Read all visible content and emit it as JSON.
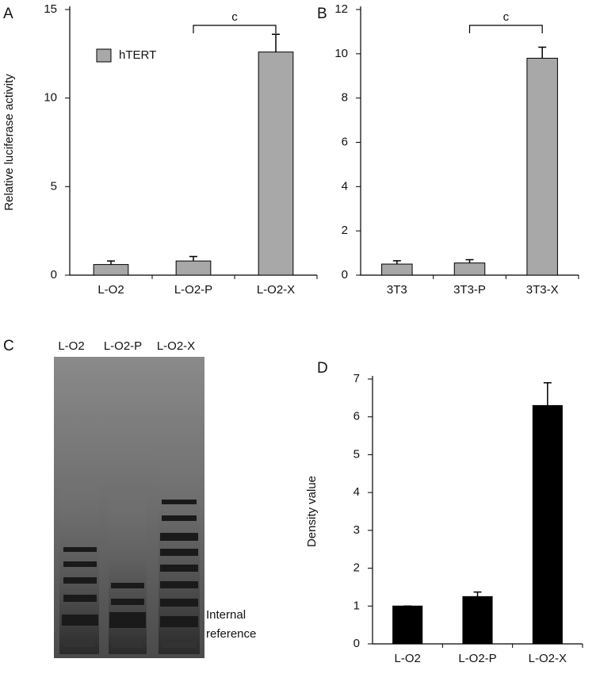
{
  "chart_data": [
    {
      "type": "bar",
      "panel_label": "A",
      "ylabel": "Relative luciferase activity",
      "categories": [
        "L-O2",
        "L-O2-P",
        "L-O2-X"
      ],
      "series": [
        {
          "name": "hTERT",
          "color": "#a8a8a8",
          "values": [
            0.6,
            0.8,
            12.6
          ],
          "errors": [
            0.2,
            0.25,
            1.0
          ]
        }
      ],
      "ylim": [
        0,
        15
      ],
      "yticks": [
        0,
        5,
        10,
        15
      ],
      "annotation": "c",
      "annotation_between": [
        1,
        2
      ]
    },
    {
      "type": "bar",
      "panel_label": "B",
      "categories": [
        "3T3",
        "3T3-P",
        "3T3-X"
      ],
      "series": [
        {
          "color": "#a8a8a8",
          "values": [
            0.5,
            0.55,
            9.8
          ],
          "errors": [
            0.15,
            0.15,
            0.5
          ]
        }
      ],
      "ylim": [
        0,
        12
      ],
      "yticks": [
        0,
        2,
        4,
        6,
        8,
        10,
        12
      ],
      "annotation": "c",
      "annotation_between": [
        1,
        2
      ]
    },
    {
      "type": "bar",
      "panel_label": "D",
      "ylabel": "Density value",
      "categories": [
        "L-O2",
        "L-O2-P",
        "L-O2-X"
      ],
      "series": [
        {
          "color": "#000000",
          "values": [
            1.0,
            1.25,
            6.3
          ],
          "errors": [
            0,
            0.12,
            0.6
          ]
        }
      ],
      "ylim": [
        0,
        7
      ],
      "yticks": [
        0,
        1,
        2,
        3,
        4,
        5,
        6,
        7
      ]
    }
  ],
  "gel": {
    "panel_label": "C",
    "lanes": [
      "L-O2",
      "L-O2-P",
      "L-O2-X"
    ],
    "reference_label": "Internal reference"
  }
}
